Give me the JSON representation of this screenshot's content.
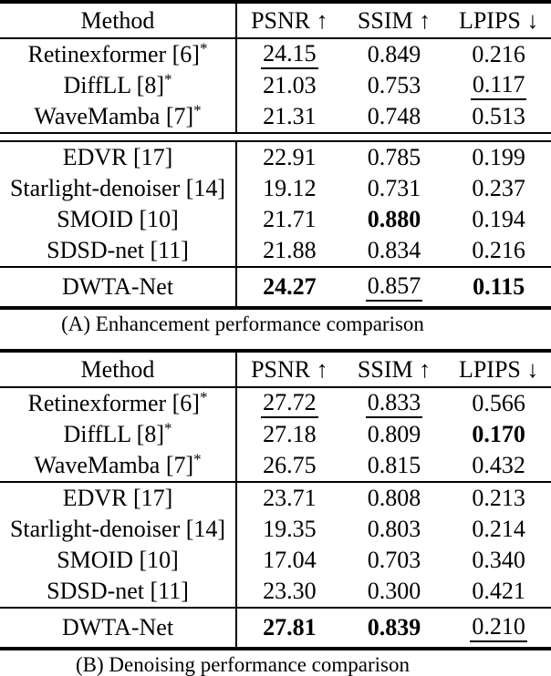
{
  "page": {
    "background": "#ffffff",
    "text_color": "#000000",
    "rule_color": "#000000"
  },
  "tables": [
    {
      "id": "A",
      "caption": "(A) Enhancement performance comparison",
      "columns": [
        "Method",
        "PSNR ↑",
        "SSIM ↑",
        "LPIPS ↓"
      ],
      "groups": [
        {
          "separator_after": "double",
          "rows": [
            {
              "method": "Retinexformer [6]",
              "superscript": "*",
              "values": [
                {
                  "text": "24.15",
                  "style": "underline"
                },
                {
                  "text": "0.849",
                  "style": "normal"
                },
                {
                  "text": "0.216",
                  "style": "normal"
                }
              ]
            },
            {
              "method": "DiffLL [8]",
              "superscript": "*",
              "values": [
                {
                  "text": "21.03",
                  "style": "normal"
                },
                {
                  "text": "0.753",
                  "style": "normal"
                },
                {
                  "text": "0.117",
                  "style": "underline"
                }
              ]
            },
            {
              "method": "WaveMamba [7]",
              "superscript": "*",
              "values": [
                {
                  "text": "21.31",
                  "style": "normal"
                },
                {
                  "text": "0.748",
                  "style": "normal"
                },
                {
                  "text": "0.513",
                  "style": "normal"
                }
              ]
            }
          ]
        },
        {
          "separator_after": "single",
          "rows": [
            {
              "method": "EDVR [17]",
              "values": [
                {
                  "text": "22.91",
                  "style": "normal"
                },
                {
                  "text": "0.785",
                  "style": "normal"
                },
                {
                  "text": "0.199",
                  "style": "normal"
                }
              ]
            },
            {
              "method": "Starlight-denoiser [14]",
              "values": [
                {
                  "text": "19.12",
                  "style": "normal"
                },
                {
                  "text": "0.731",
                  "style": "normal"
                },
                {
                  "text": "0.237",
                  "style": "normal"
                }
              ]
            },
            {
              "method": "SMOID [10]",
              "values": [
                {
                  "text": "21.71",
                  "style": "normal"
                },
                {
                  "text": "0.880",
                  "style": "bold"
                },
                {
                  "text": "0.194",
                  "style": "normal"
                }
              ]
            },
            {
              "method": "SDSD-net [11]",
              "values": [
                {
                  "text": "21.88",
                  "style": "normal"
                },
                {
                  "text": "0.834",
                  "style": "normal"
                },
                {
                  "text": "0.216",
                  "style": "normal"
                }
              ]
            }
          ]
        },
        {
          "separator_after": "none",
          "tall": true,
          "rows": [
            {
              "method": "DWTA-Net",
              "values": [
                {
                  "text": "24.27",
                  "style": "bold"
                },
                {
                  "text": "0.857",
                  "style": "underline"
                },
                {
                  "text": "0.115",
                  "style": "bold"
                }
              ]
            }
          ]
        }
      ]
    },
    {
      "id": "B",
      "caption": "(B) Denoising performance comparison",
      "columns": [
        "Method",
        "PSNR ↑",
        "SSIM ↑",
        "LPIPS ↓"
      ],
      "groups": [
        {
          "separator_after": "single",
          "rows": [
            {
              "method": "Retinexformer [6]",
              "superscript": "*",
              "values": [
                {
                  "text": "27.72",
                  "style": "underline"
                },
                {
                  "text": "0.833",
                  "style": "underline"
                },
                {
                  "text": "0.566",
                  "style": "normal"
                }
              ]
            },
            {
              "method": "DiffLL [8]",
              "superscript": "*",
              "values": [
                {
                  "text": "27.18",
                  "style": "normal"
                },
                {
                  "text": "0.809",
                  "style": "normal"
                },
                {
                  "text": "0.170",
                  "style": "bold"
                }
              ]
            },
            {
              "method": "WaveMamba [7]",
              "superscript": "*",
              "values": [
                {
                  "text": "26.75",
                  "style": "normal"
                },
                {
                  "text": "0.815",
                  "style": "normal"
                },
                {
                  "text": "0.432",
                  "style": "normal"
                }
              ]
            }
          ]
        },
        {
          "separator_after": "single",
          "rows": [
            {
              "method": "EDVR [17]",
              "values": [
                {
                  "text": "23.71",
                  "style": "normal"
                },
                {
                  "text": "0.808",
                  "style": "normal"
                },
                {
                  "text": "0.213",
                  "style": "normal"
                }
              ]
            },
            {
              "method": "Starlight-denoiser [14]",
              "values": [
                {
                  "text": "19.35",
                  "style": "normal"
                },
                {
                  "text": "0.803",
                  "style": "normal"
                },
                {
                  "text": "0.214",
                  "style": "normal"
                }
              ]
            },
            {
              "method": "SMOID [10]",
              "values": [
                {
                  "text": "17.04",
                  "style": "normal"
                },
                {
                  "text": "0.703",
                  "style": "normal"
                },
                {
                  "text": "0.340",
                  "style": "normal"
                }
              ]
            },
            {
              "method": "SDSD-net [11]",
              "values": [
                {
                  "text": "23.30",
                  "style": "normal"
                },
                {
                  "text": "0.300",
                  "style": "normal"
                },
                {
                  "text": "0.421",
                  "style": "normal"
                }
              ]
            }
          ]
        },
        {
          "separator_after": "none",
          "tall": true,
          "rows": [
            {
              "method": "DWTA-Net",
              "values": [
                {
                  "text": "27.81",
                  "style": "bold"
                },
                {
                  "text": "0.839",
                  "style": "bold"
                },
                {
                  "text": "0.210",
                  "style": "underline"
                }
              ]
            }
          ]
        }
      ]
    }
  ]
}
